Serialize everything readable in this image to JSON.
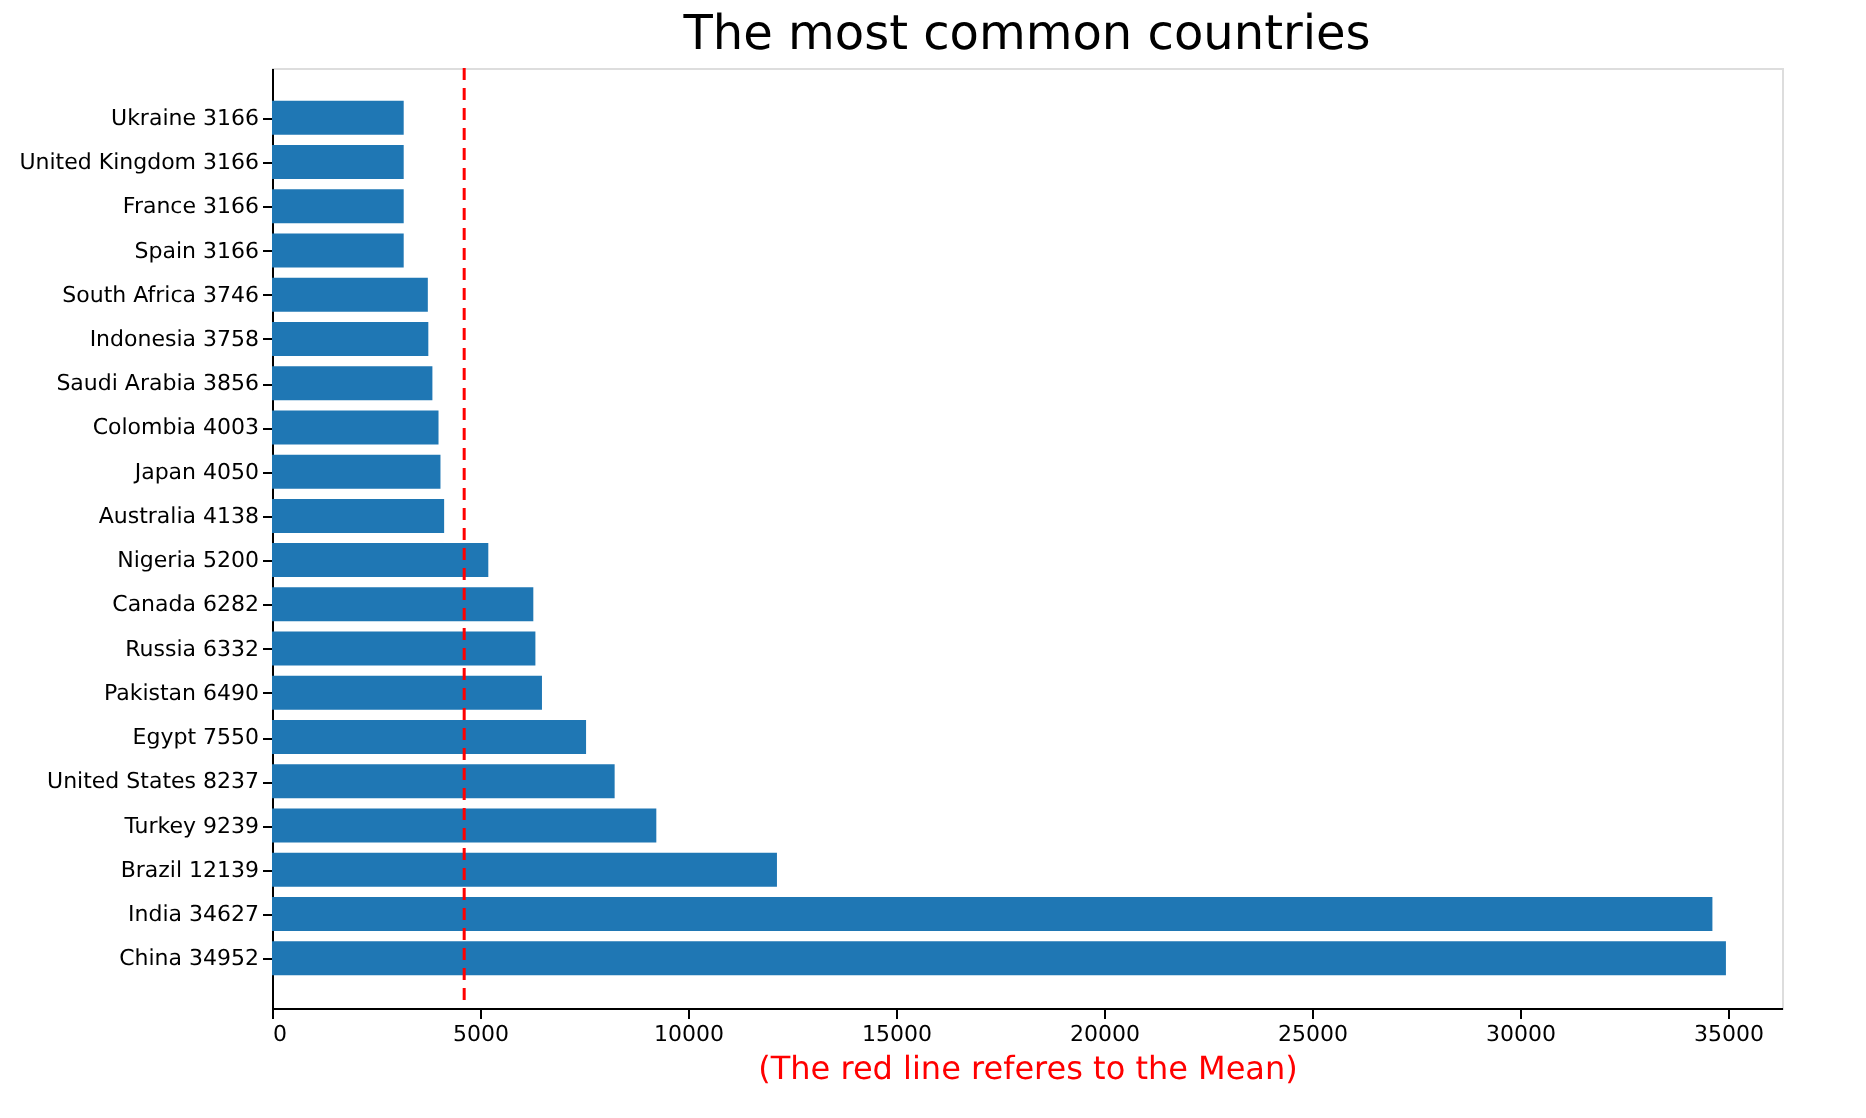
{
  "chart_data": {
    "type": "bar",
    "orientation": "horizontal",
    "title": "The most common countries",
    "xlabel": "(The red line referes to the Mean)",
    "categories": [
      "Ukraine  3166",
      "United Kingdom  3166",
      "France  3166",
      "Spain  3166",
      "South Africa  3746",
      "Indonesia  3758",
      "Saudi Arabia  3856",
      "Colombia  4003",
      "Japan  4050",
      "Australia  4138",
      "Nigeria  5200",
      "Canada  6282",
      "Russia  6332",
      "Pakistan  6490",
      "Egypt  7550",
      "United States  8237",
      "Turkey  9239",
      "Brazil  12139",
      "India  34627",
      "China  34952"
    ],
    "values": [
      3166,
      3166,
      3166,
      3166,
      3746,
      3758,
      3856,
      4003,
      4050,
      4138,
      5200,
      6282,
      6332,
      6490,
      7550,
      8237,
      9239,
      12139,
      34627,
      34952
    ],
    "color": "#1f77b4",
    "xlim": [
      0,
      36300
    ],
    "xticks": [
      0,
      5000,
      10000,
      15000,
      20000,
      25000,
      30000,
      35000
    ],
    "grid": false,
    "ref_lines": [
      {
        "axis": "x",
        "value": 4620,
        "color": "#ff0000",
        "line_style": "dashed"
      }
    ]
  }
}
